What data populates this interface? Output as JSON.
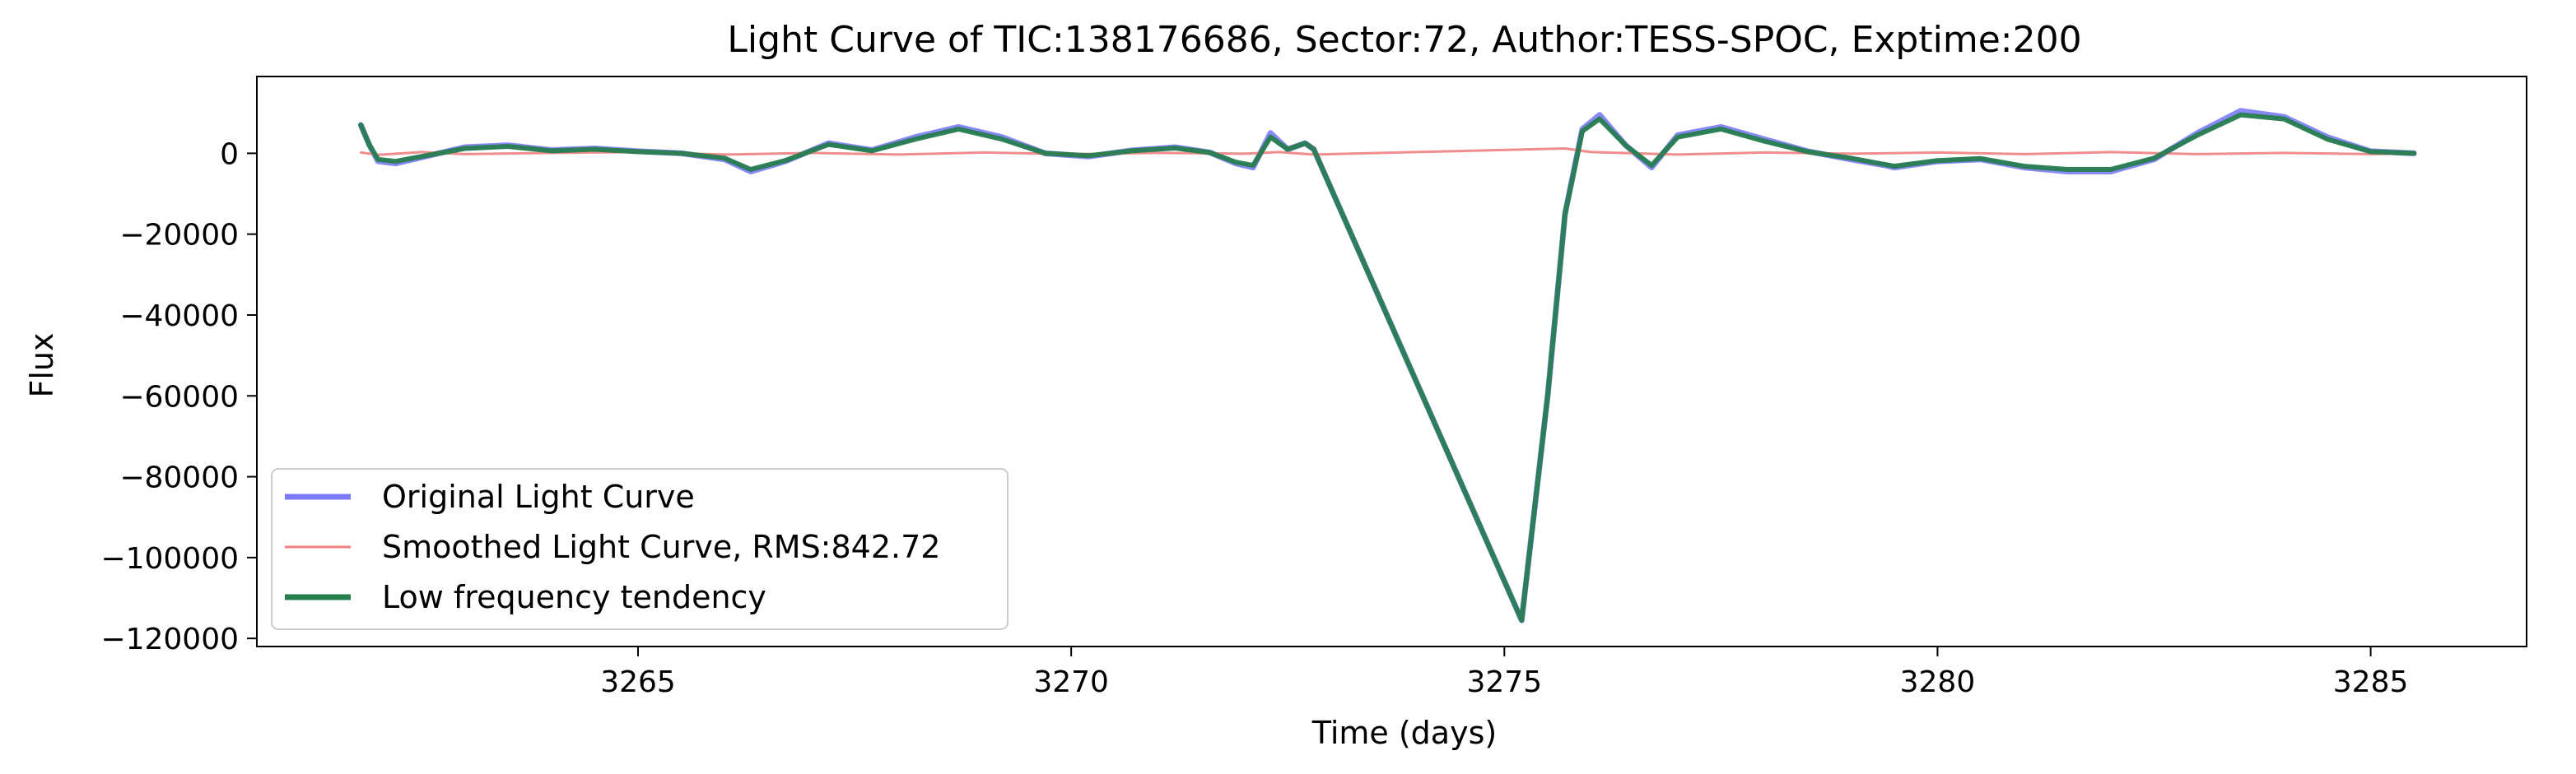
{
  "chart_data": {
    "type": "line",
    "title": "Light Curve of TIC:138176686, Sector:72, Author:TESS-SPOC, Exptime:200",
    "xlabel": "Time (days)",
    "ylabel": "Flux",
    "xlim": [
      3260.6,
      3286.8
    ],
    "ylim": [
      -122000,
      19000
    ],
    "xticks": [
      3265,
      3270,
      3275,
      3280,
      3285
    ],
    "xtick_labels": [
      "3265",
      "3270",
      "3275",
      "3280",
      "3285"
    ],
    "yticks": [
      0,
      -20000,
      -40000,
      -60000,
      -80000,
      -100000,
      -120000
    ],
    "ytick_labels": [
      "0",
      "−20000",
      "−40000",
      "−60000",
      "−80000",
      "−100000",
      "−120000"
    ],
    "grid": false,
    "legend_position": "lower-left",
    "series": [
      {
        "name": "Original Light Curve",
        "color": "#7b7bf5",
        "x": [
          3261.8,
          3261.9,
          3262.0,
          3262.2,
          3262.5,
          3263.0,
          3263.5,
          3264.0,
          3264.5,
          3265.0,
          3265.5,
          3266.0,
          3266.3,
          3266.7,
          3267.2,
          3267.7,
          3268.2,
          3268.7,
          3269.2,
          3269.7,
          3270.2,
          3270.7,
          3271.2,
          3271.6,
          3271.9,
          3272.1,
          3272.3,
          3272.5,
          3272.7,
          3272.8,
          3275.2,
          3275.5,
          3275.7,
          3275.9,
          3276.1,
          3276.4,
          3276.7,
          3277.0,
          3277.5,
          3278.0,
          3278.5,
          3279.0,
          3279.4,
          3279.5,
          3280.0,
          3280.5,
          3281.0,
          3281.5,
          3282.0,
          3282.5,
          3283.0,
          3283.5,
          3284.0,
          3284.5,
          3285.0,
          3285.5
        ],
        "y": [
          7000,
          2000,
          -2000,
          -2500,
          -1000,
          1500,
          2000,
          800,
          1200,
          500,
          0,
          -1500,
          -4500,
          -2000,
          2500,
          800,
          4000,
          6500,
          4000,
          0,
          -800,
          700,
          1500,
          200,
          -2500,
          -3500,
          5000,
          1000,
          2500,
          1000,
          -115500,
          -60000,
          -15000,
          6000,
          9500,
          2000,
          -3500,
          4500,
          6500,
          3500,
          500,
          -1500,
          -3000,
          -3500,
          -2000,
          -1500,
          -3500,
          -4500,
          -4500,
          -1500,
          5000,
          10500,
          9000,
          4000,
          500,
          0
        ]
      },
      {
        "name": "Smoothed Light Curve, RMS:842.72",
        "color": "#f08080",
        "x": [
          3261.8,
          3262.0,
          3262.5,
          3263.0,
          3264.0,
          3265.0,
          3266.0,
          3266.3,
          3267.0,
          3268.0,
          3269.0,
          3270.0,
          3271.0,
          3272.0,
          3272.4,
          3272.8,
          3275.7,
          3276.0,
          3277.0,
          3278.0,
          3279.0,
          3280.0,
          3281.0,
          3282.0,
          3283.0,
          3284.0,
          3285.0,
          3285.5
        ],
        "y": [
          200,
          -400,
          300,
          -200,
          100,
          300,
          -300,
          -200,
          100,
          -300,
          200,
          -200,
          100,
          -100,
          300,
          -300,
          1200,
          300,
          -300,
          200,
          -100,
          200,
          -200,
          300,
          -200,
          100,
          -200,
          0
        ]
      },
      {
        "name": "Low frequency tendency",
        "color": "#267d4e",
        "x": [
          3261.8,
          3261.9,
          3262.0,
          3262.2,
          3262.5,
          3263.0,
          3263.5,
          3264.0,
          3264.5,
          3265.0,
          3265.5,
          3266.0,
          3266.3,
          3266.7,
          3267.2,
          3267.7,
          3268.2,
          3268.7,
          3269.2,
          3269.7,
          3270.2,
          3270.7,
          3271.2,
          3271.6,
          3271.9,
          3272.1,
          3272.3,
          3272.5,
          3272.7,
          3272.8,
          3275.2,
          3275.5,
          3275.7,
          3275.9,
          3276.1,
          3276.4,
          3276.7,
          3277.0,
          3277.5,
          3278.0,
          3278.5,
          3279.0,
          3279.4,
          3279.5,
          3280.0,
          3280.5,
          3281.0,
          3281.5,
          3282.0,
          3282.5,
          3283.0,
          3283.5,
          3284.0,
          3284.5,
          3285.0,
          3285.5
        ],
        "y": [
          7000,
          2000,
          -1500,
          -2000,
          -800,
          1200,
          1700,
          600,
          1000,
          400,
          0,
          -1200,
          -4000,
          -1800,
          2200,
          600,
          3500,
          6000,
          3500,
          0,
          -600,
          600,
          1300,
          200,
          -2200,
          -3000,
          4000,
          1000,
          2500,
          1000,
          -115500,
          -60000,
          -15000,
          5500,
          8500,
          2000,
          -3000,
          4000,
          6000,
          3000,
          400,
          -1200,
          -2800,
          -3200,
          -1800,
          -1300,
          -3200,
          -4000,
          -4000,
          -1200,
          4500,
          9500,
          8500,
          3500,
          400,
          0
        ]
      }
    ]
  }
}
